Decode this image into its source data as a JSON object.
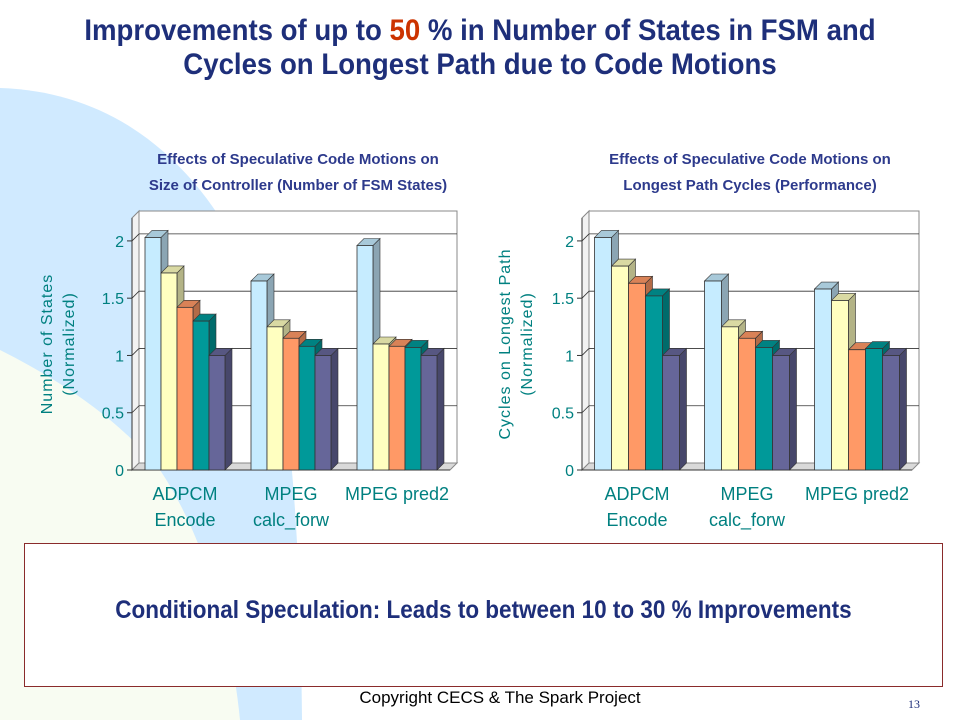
{
  "slide": {
    "title_line1_pre": "Improvements of up to ",
    "title_line1_highlight": "50",
    "title_line1_post": " % in Number of States in FSM and",
    "title_line2": "Cycles on Longest Path due to Code  Motions",
    "callout": "Conditional Speculation: Leads to between 10 to 30 % Improvements",
    "footer": "Copyright CECS & The Spark Project",
    "page_number": "13"
  },
  "colors": {
    "title": "#1e2f7a",
    "highlight": "#cc3300",
    "chart_title": "#2d3a8c",
    "axis_text": "#008080",
    "series": [
      "#c6ecff",
      "#ffffc0",
      "#ff9966",
      "#009999",
      "#666699"
    ],
    "background_blue": "#d0eaff",
    "background_yellow": "#fffff0"
  },
  "chart_data": [
    {
      "type": "bar",
      "title": [
        "Effects of Speculative Code Motions on",
        "Size of Controller (Number of FSM States)"
      ],
      "ylabel": [
        "Number of States",
        "(Normalized)"
      ],
      "xlabel": "",
      "ylim": [
        0,
        2.2
      ],
      "yticks": [
        "0",
        "0.5",
        "1",
        "1.5",
        "2"
      ],
      "categories": [
        [
          "ADPCM",
          "Encode"
        ],
        [
          "MPEG",
          "calc_forw"
        ],
        [
          "MPEG pred2"
        ]
      ],
      "grid": true,
      "series": [
        {
          "values": [
            2.03,
            1.65,
            1.96
          ]
        },
        {
          "values": [
            1.72,
            1.25,
            1.1
          ]
        },
        {
          "values": [
            1.42,
            1.15,
            1.08
          ]
        },
        {
          "values": [
            1.3,
            1.08,
            1.07
          ]
        },
        {
          "values": [
            1.0,
            1.0,
            1.0
          ]
        }
      ]
    },
    {
      "type": "bar",
      "title": [
        "Effects of Speculative Code Motions on",
        "Longest Path Cycles (Performance)"
      ],
      "ylabel": [
        "Cycles on Longest Path",
        "(Normalized)"
      ],
      "xlabel": "",
      "ylim": [
        0,
        2.2
      ],
      "yticks": [
        "0",
        "0.5",
        "1",
        "1.5",
        "2"
      ],
      "categories": [
        [
          "ADPCM",
          "Encode"
        ],
        [
          "MPEG",
          "calc_forw"
        ],
        [
          "MPEG pred2"
        ]
      ],
      "grid": true,
      "series": [
        {
          "values": [
            2.03,
            1.65,
            1.58
          ]
        },
        {
          "values": [
            1.78,
            1.25,
            1.48
          ]
        },
        {
          "values": [
            1.63,
            1.15,
            1.05
          ]
        },
        {
          "values": [
            1.52,
            1.07,
            1.06
          ]
        },
        {
          "values": [
            1.0,
            1.0,
            1.0
          ]
        }
      ]
    }
  ]
}
